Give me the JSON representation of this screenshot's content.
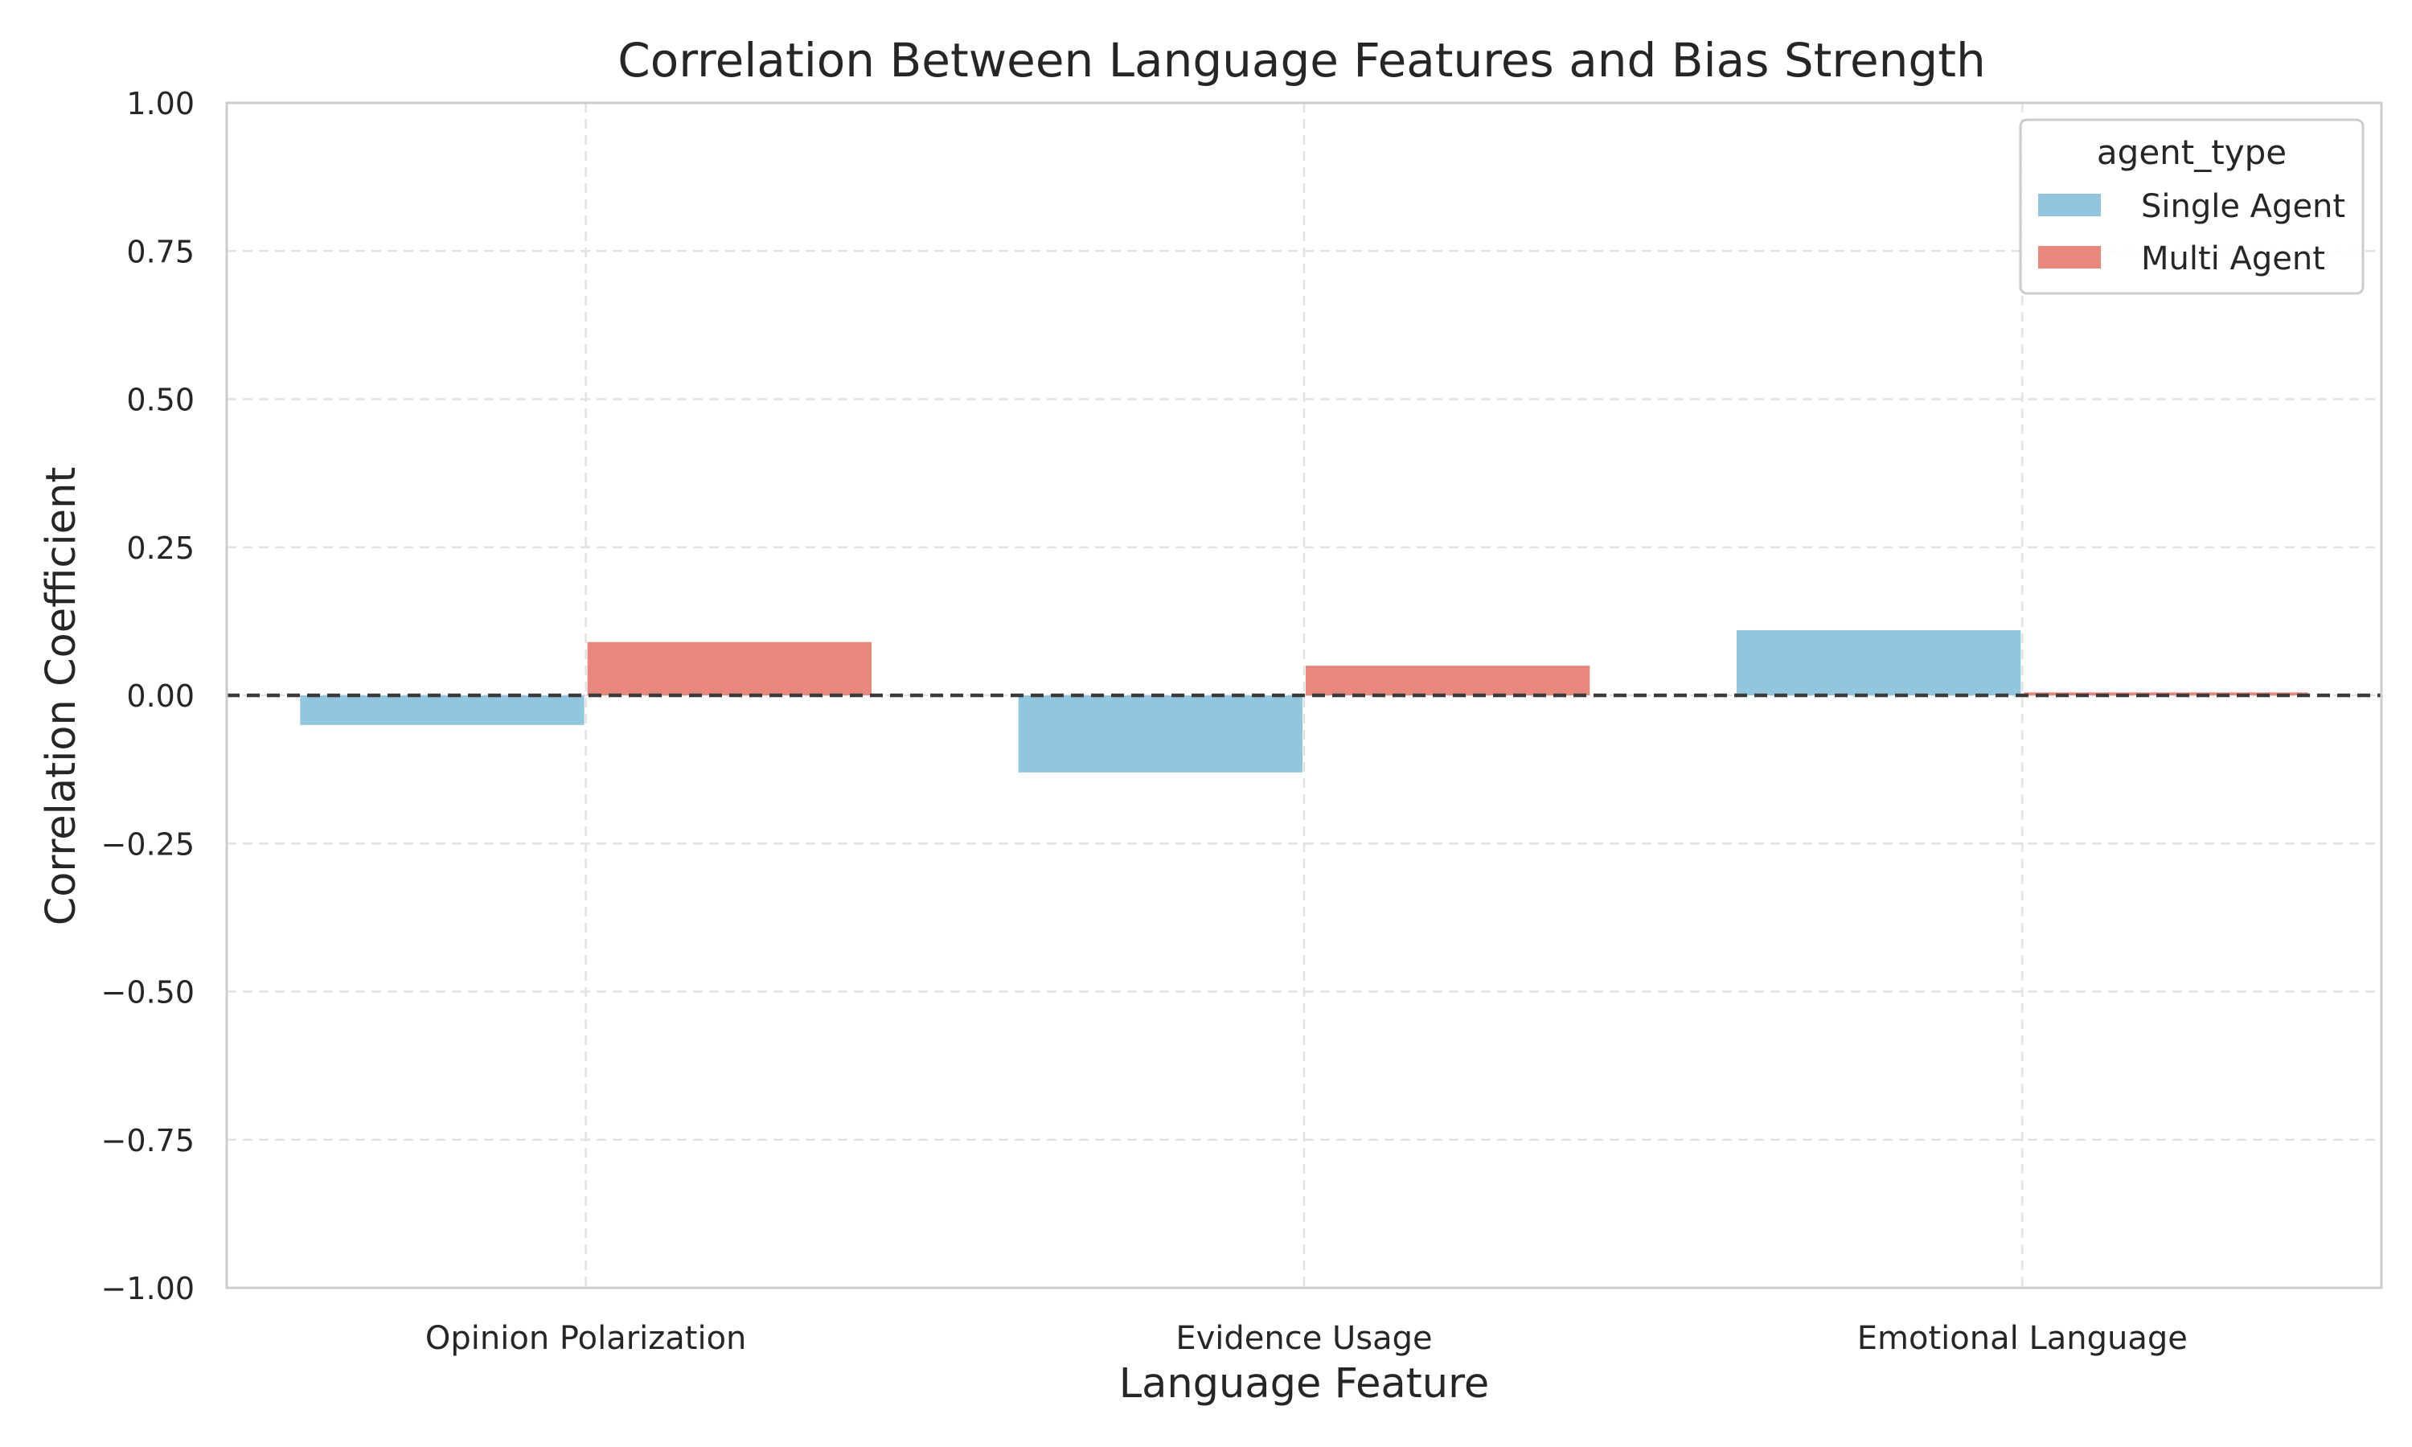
{
  "chart_data": {
    "type": "bar",
    "title": "Correlation Between Language Features and Bias Strength",
    "xlabel": "Language Feature",
    "ylabel": "Correlation Coefficient",
    "categories": [
      "Opinion Polarization",
      "Evidence Usage",
      "Emotional Language"
    ],
    "series": [
      {
        "name": "Single Agent",
        "values": [
          -0.05,
          -0.13,
          0.11
        ],
        "color": "#92c5de"
      },
      {
        "name": "Multi Agent",
        "values": [
          0.09,
          0.05,
          0.005
        ],
        "color": "#e8877c"
      }
    ],
    "ylim": [
      -1.0,
      1.0
    ],
    "yticks": [
      1.0,
      0.75,
      0.5,
      0.25,
      0.0,
      -0.25,
      -0.5,
      -0.75,
      -1.0
    ],
    "ytick_labels": [
      "1.00",
      "0.75",
      "0.50",
      "0.25",
      "0.00",
      "−0.25",
      "−0.50",
      "−0.75",
      "−1.00"
    ],
    "grid": true,
    "reference_line": 0,
    "legend": {
      "title": "agent_type",
      "placement": "top-right"
    }
  }
}
